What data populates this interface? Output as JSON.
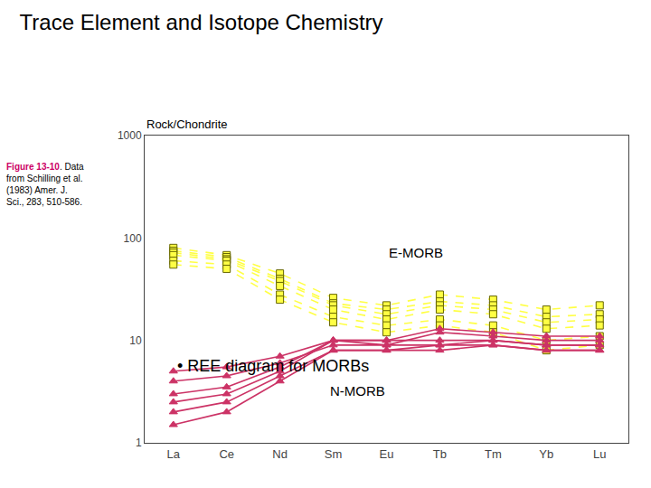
{
  "chart_data": {
    "type": "line",
    "title": "Trace Element and Isotope Chemistry",
    "subtitle": "• REE diagram for MORBs",
    "ylabel": "Rock/Chondrite",
    "annotations": [
      {
        "text": "Figure 13-10",
        "color": "#cc0066"
      },
      {
        "text": ". Data\nfrom Schilling et al.\n(1983) Amer. J.\nSci., 283, 510-586."
      },
      {
        "text": "E-MORB"
      },
      {
        "text": "N-MORB"
      }
    ],
    "categories": [
      "La",
      "Ce",
      "Nd",
      "Sm",
      "Eu",
      "Tb",
      "Tm",
      "Yb",
      "Lu"
    ],
    "series": [
      {
        "color": "#ffff44",
        "marker": "square",
        "line_style": "dashed",
        "values": [
          80,
          68,
          45,
          26,
          22,
          28,
          25,
          20,
          22
        ]
      },
      {
        "color": "#ffff44",
        "marker": "square",
        "line_style": "dashed",
        "values": [
          75,
          65,
          40,
          23,
          20,
          24,
          22,
          17,
          18
        ]
      },
      {
        "color": "#ffff44",
        "marker": "square",
        "line_style": "dashed",
        "values": [
          72,
          62,
          38,
          22,
          18,
          22,
          20,
          15,
          16
        ]
      },
      {
        "color": "#ffff44",
        "marker": "square",
        "line_style": "dashed",
        "values": [
          68,
          60,
          34,
          20,
          16,
          20,
          18,
          13,
          14
        ]
      },
      {
        "color": "#ffff44",
        "marker": "square",
        "line_style": "dashed",
        "values": [
          60,
          55,
          28,
          17,
          14,
          16,
          14,
          10,
          11
        ]
      },
      {
        "color": "#ffff44",
        "marker": "square",
        "line_style": "dashed",
        "values": [
          55,
          50,
          25,
          15,
          12,
          14,
          12,
          8,
          9
        ]
      },
      {
        "color": "#cc3366",
        "marker": "triangle",
        "line_style": "solid",
        "values": [
          5,
          5.5,
          7,
          10,
          10,
          13,
          12,
          11,
          11
        ]
      },
      {
        "color": "#cc3366",
        "marker": "triangle",
        "line_style": "solid",
        "values": [
          4,
          4.5,
          6,
          9,
          9,
          12,
          11,
          10,
          10
        ]
      },
      {
        "color": "#cc3366",
        "marker": "triangle",
        "line_style": "solid",
        "values": [
          3,
          3.5,
          5.5,
          10,
          10,
          10,
          10,
          9,
          9
        ]
      },
      {
        "color": "#cc3366",
        "marker": "triangle",
        "line_style": "solid",
        "values": [
          2.5,
          3,
          5,
          10,
          9,
          9,
          10,
          9,
          9
        ]
      },
      {
        "color": "#cc3366",
        "marker": "triangle",
        "line_style": "solid",
        "values": [
          2,
          2.5,
          4.5,
          8,
          8,
          9,
          9,
          8,
          8
        ]
      },
      {
        "color": "#cc3366",
        "marker": "triangle",
        "line_style": "solid",
        "values": [
          1.5,
          2,
          4,
          8,
          8,
          8,
          9,
          8,
          8
        ]
      }
    ],
    "ylim": [
      1,
      1000
    ],
    "yticks": [
      1,
      10,
      100,
      1000
    ],
    "log": "y",
    "grid": false
  }
}
